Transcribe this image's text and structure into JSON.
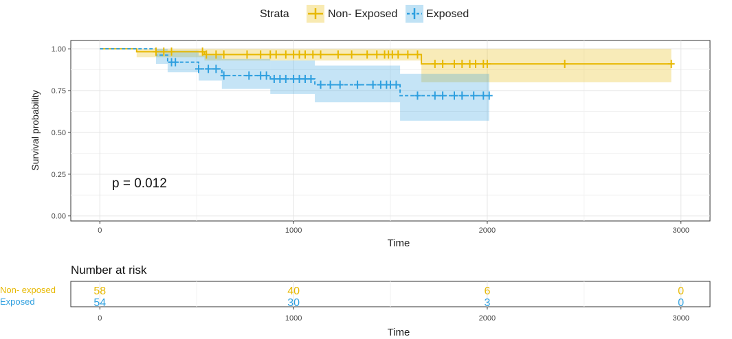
{
  "legend": {
    "title": "Strata",
    "placement": "top",
    "items": [
      {
        "label": "Non- Exposed",
        "color": "#E7B800"
      },
      {
        "label": "Exposed",
        "color": "#2E9FDF"
      }
    ]
  },
  "chart_data": {
    "type": "line",
    "subtype": "kaplan-meier",
    "xlabel": "Time",
    "ylabel": "Survival probability",
    "xlim": [
      -150,
      3150
    ],
    "ylim": [
      -0.03,
      1.05
    ],
    "x_ticks": [
      "0",
      "1000",
      "2000",
      "3000"
    ],
    "y_ticks": [
      "0.00",
      "0.25",
      "0.50",
      "0.75",
      "1.00"
    ],
    "grid": true,
    "annotation": "p = 0.012",
    "series": [
      {
        "name": "Non- Exposed",
        "color": "#E7B800",
        "dashed": false,
        "steps": [
          [
            0,
            1.0
          ],
          [
            190,
            0.983
          ],
          [
            540,
            0.966
          ],
          [
            1660,
            0.91
          ],
          [
            2950,
            0.91
          ]
        ],
        "ci": [
          {
            "x0": 190,
            "x1": 540,
            "lo": 0.95,
            "hi": 1.0
          },
          {
            "x0": 540,
            "x1": 1660,
            "lo": 0.93,
            "hi": 1.0
          },
          {
            "x0": 1660,
            "x1": 2950,
            "lo": 0.8,
            "hi": 1.0
          }
        ],
        "censors": [
          [
            290,
            0.983
          ],
          [
            330,
            0.983
          ],
          [
            370,
            0.983
          ],
          [
            530,
            0.983
          ],
          [
            550,
            0.966
          ],
          [
            600,
            0.966
          ],
          [
            640,
            0.966
          ],
          [
            760,
            0.966
          ],
          [
            830,
            0.966
          ],
          [
            880,
            0.966
          ],
          [
            910,
            0.966
          ],
          [
            960,
            0.966
          ],
          [
            1000,
            0.966
          ],
          [
            1030,
            0.966
          ],
          [
            1060,
            0.966
          ],
          [
            1100,
            0.966
          ],
          [
            1140,
            0.966
          ],
          [
            1230,
            0.966
          ],
          [
            1300,
            0.966
          ],
          [
            1380,
            0.966
          ],
          [
            1430,
            0.966
          ],
          [
            1470,
            0.966
          ],
          [
            1490,
            0.966
          ],
          [
            1510,
            0.966
          ],
          [
            1540,
            0.966
          ],
          [
            1590,
            0.966
          ],
          [
            1640,
            0.966
          ],
          [
            1730,
            0.91
          ],
          [
            1770,
            0.91
          ],
          [
            1830,
            0.91
          ],
          [
            1870,
            0.91
          ],
          [
            1910,
            0.91
          ],
          [
            1940,
            0.91
          ],
          [
            1980,
            0.91
          ],
          [
            2000,
            0.91
          ],
          [
            2400,
            0.91
          ],
          [
            2950,
            0.91
          ]
        ]
      },
      {
        "name": "Exposed",
        "color": "#2E9FDF",
        "dashed": true,
        "steps": [
          [
            0,
            1.0
          ],
          [
            290,
            0.962
          ],
          [
            350,
            0.92
          ],
          [
            510,
            0.88
          ],
          [
            630,
            0.84
          ],
          [
            880,
            0.82
          ],
          [
            1110,
            0.785
          ],
          [
            1550,
            0.72
          ],
          [
            2010,
            0.72
          ]
        ],
        "ci": [
          {
            "x0": 290,
            "x1": 350,
            "lo": 0.91,
            "hi": 1.0
          },
          {
            "x0": 350,
            "x1": 510,
            "lo": 0.86,
            "hi": 0.99
          },
          {
            "x0": 510,
            "x1": 630,
            "lo": 0.81,
            "hi": 0.96
          },
          {
            "x0": 630,
            "x1": 880,
            "lo": 0.76,
            "hi": 0.94
          },
          {
            "x0": 880,
            "x1": 1110,
            "lo": 0.73,
            "hi": 0.93
          },
          {
            "x0": 1110,
            "x1": 1550,
            "lo": 0.68,
            "hi": 0.9
          },
          {
            "x0": 1550,
            "x1": 2010,
            "lo": 0.57,
            "hi": 0.85
          }
        ],
        "censors": [
          [
            370,
            0.92
          ],
          [
            390,
            0.92
          ],
          [
            510,
            0.88
          ],
          [
            560,
            0.88
          ],
          [
            600,
            0.88
          ],
          [
            640,
            0.84
          ],
          [
            770,
            0.84
          ],
          [
            830,
            0.84
          ],
          [
            860,
            0.84
          ],
          [
            900,
            0.82
          ],
          [
            930,
            0.82
          ],
          [
            960,
            0.82
          ],
          [
            1000,
            0.82
          ],
          [
            1030,
            0.82
          ],
          [
            1060,
            0.82
          ],
          [
            1090,
            0.82
          ],
          [
            1140,
            0.785
          ],
          [
            1190,
            0.785
          ],
          [
            1240,
            0.785
          ],
          [
            1330,
            0.785
          ],
          [
            1410,
            0.785
          ],
          [
            1450,
            0.785
          ],
          [
            1480,
            0.785
          ],
          [
            1500,
            0.785
          ],
          [
            1530,
            0.785
          ],
          [
            1640,
            0.72
          ],
          [
            1730,
            0.72
          ],
          [
            1770,
            0.72
          ],
          [
            1830,
            0.72
          ],
          [
            1870,
            0.72
          ],
          [
            1930,
            0.72
          ],
          [
            1980,
            0.72
          ],
          [
            2010,
            0.72
          ]
        ]
      }
    ]
  },
  "risk_table": {
    "title": "Number at risk",
    "xlabel": "Time",
    "x_ticks": [
      "0",
      "1000",
      "2000",
      "3000"
    ],
    "rows": [
      {
        "label": "Non- exposed",
        "color": "#E7B800",
        "values": [
          "58",
          "40",
          "6",
          "0"
        ]
      },
      {
        "label": "Exposed",
        "color": "#2E9FDF",
        "values": [
          "54",
          "30",
          "3",
          "0"
        ]
      }
    ]
  }
}
